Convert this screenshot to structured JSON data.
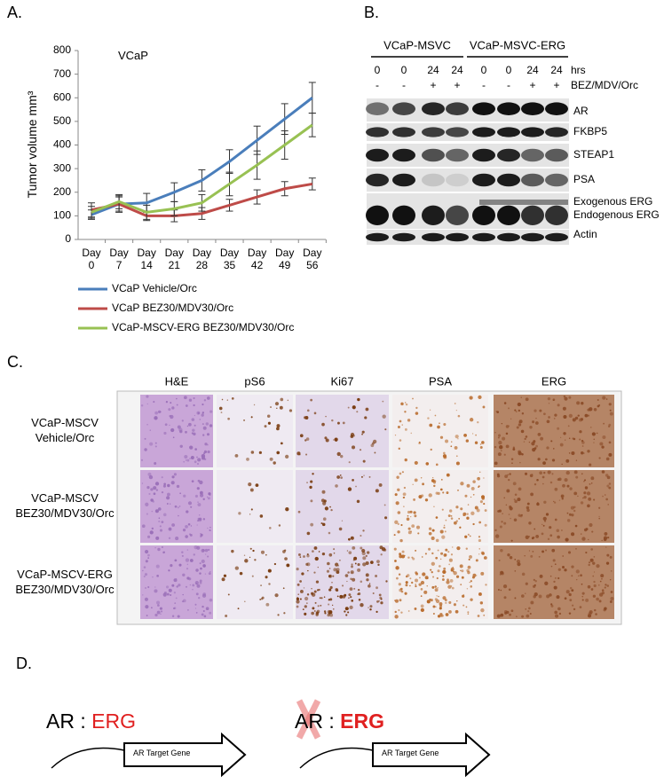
{
  "panel_labels": [
    "A.",
    "B.",
    "C.",
    "D."
  ],
  "chart_data": {
    "type": "line",
    "annotation": "VCaP",
    "ylabel": "Tumor volume mm³",
    "categories": [
      "Day 0",
      "Day 7",
      "Day 14",
      "Day 21",
      "Day 28",
      "Day 35",
      "Day 42",
      "Day 49",
      "Day 56"
    ],
    "ylim": [
      0,
      800
    ],
    "yticks": [
      0,
      100,
      200,
      300,
      400,
      500,
      600,
      700,
      800
    ],
    "series": [
      {
        "name": "VCaP Vehicle/Orc",
        "color": "#4a7ebb",
        "values": [
          105,
          150,
          155,
          200,
          250,
          330,
          420,
          510,
          600
        ],
        "errors": [
          20,
          35,
          40,
          40,
          45,
          50,
          60,
          65,
          65
        ]
      },
      {
        "name": "VCaP BEZ30/MDV30/Orc",
        "color": "#be4b48",
        "values": [
          125,
          150,
          100,
          100,
          110,
          145,
          180,
          215,
          235
        ],
        "errors": [
          30,
          30,
          20,
          25,
          25,
          25,
          30,
          30,
          25
        ]
      },
      {
        "name": "VCaP-MSCV-ERG BEZ30/MDV30/Orc",
        "color": "#98c153",
        "values": [
          115,
          160,
          115,
          130,
          155,
          235,
          315,
          400,
          485
        ],
        "errors": [
          25,
          30,
          30,
          30,
          35,
          50,
          60,
          60,
          50
        ]
      }
    ]
  },
  "blot": {
    "groups": [
      "VCaP-MSVC",
      "VCaP-MSVC-ERG"
    ],
    "timepoints": [
      0,
      0,
      24,
      24,
      0,
      0,
      24,
      24
    ],
    "time_unit": "hrs",
    "treatment": [
      "-",
      "-",
      "+",
      "+",
      "-",
      "-",
      "+",
      "+"
    ],
    "treatment_label": "BEZ/MDV/Orc",
    "rows": [
      "AR",
      "FKBP5",
      "STEAP1",
      "PSA",
      "Exogenous ERG",
      "Endogenous ERG",
      "Actin"
    ]
  },
  "ihc": {
    "columns": [
      "H&E",
      "pS6",
      "Ki67",
      "PSA",
      "ERG"
    ],
    "rows": [
      [
        "VCaP-MSCV",
        "Vehicle/Orc"
      ],
      [
        "VCaP-MSCV",
        "BEZ30/MDV30/Orc"
      ],
      [
        "VCaP-MSCV-ERG",
        "BEZ30/MDV30/Orc"
      ]
    ]
  },
  "model": {
    "left": {
      "ar": "AR",
      "sep": ":",
      "erg": "ERG",
      "gene": "AR Target Gene"
    },
    "right": {
      "ar": "AR",
      "sep": ":",
      "erg": "ERG",
      "gene": "AR Target Gene"
    }
  }
}
